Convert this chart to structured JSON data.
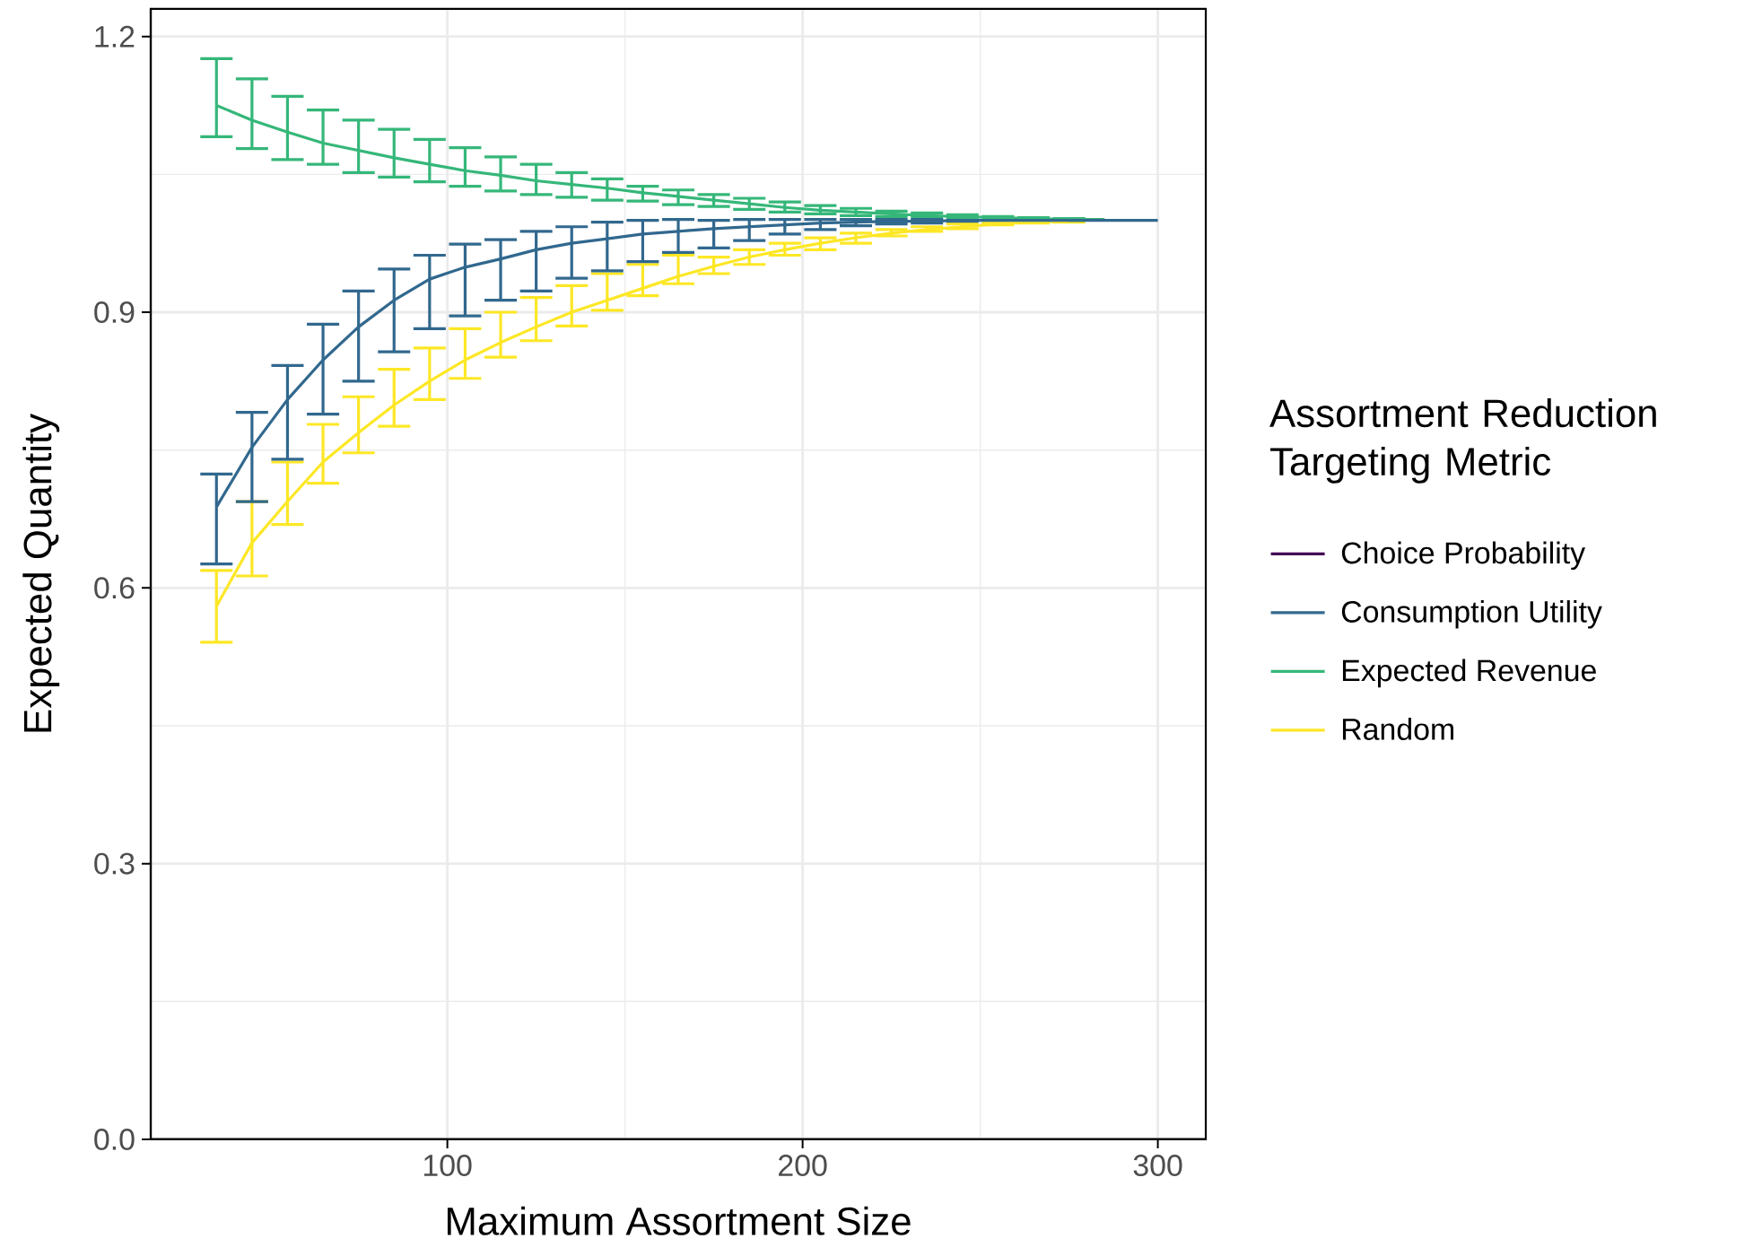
{
  "chart_data": {
    "type": "line",
    "xlabel": "Maximum Assortment Size",
    "ylabel": "Expected Quantity",
    "legend_title": "Assortment Reduction Targeting Metric",
    "x": [
      35,
      45,
      55,
      65,
      75,
      85,
      95,
      105,
      115,
      125,
      135,
      145,
      155,
      165,
      175,
      185,
      195,
      205,
      215,
      225,
      235,
      245,
      255,
      265,
      275,
      285,
      295,
      300
    ],
    "series": [
      {
        "name": "Choice Probability",
        "color": "#440154",
        "values": [
          null,
          null,
          null,
          null,
          null,
          null,
          null,
          null,
          null,
          null,
          null,
          null,
          null,
          null,
          null,
          null,
          null,
          null,
          null,
          null,
          null,
          null,
          null,
          null,
          null,
          null,
          null,
          null
        ]
      },
      {
        "name": "Consumption Utility",
        "color": "#31688e",
        "values": [
          0.688,
          0.753,
          0.805,
          0.848,
          0.884,
          0.913,
          0.936,
          0.949,
          0.958,
          0.968,
          0.975,
          0.98,
          0.985,
          0.988,
          0.991,
          0.993,
          0.995,
          0.997,
          0.998,
          0.999,
          0.999,
          1.0,
          1.0,
          1.0,
          1.0,
          1.0,
          1.0,
          1.0
        ],
        "errors": [
          [
            0.626,
            0.724
          ],
          [
            0.694,
            0.791
          ],
          [
            0.74,
            0.842
          ],
          [
            0.789,
            0.887
          ],
          [
            0.825,
            0.923
          ],
          [
            0.857,
            0.947
          ],
          [
            0.882,
            0.962
          ],
          [
            0.896,
            0.974
          ],
          [
            0.913,
            0.979
          ],
          [
            0.923,
            0.988
          ],
          [
            0.937,
            0.993
          ],
          [
            0.945,
            0.998
          ],
          [
            0.955,
            1.0
          ],
          [
            0.965,
            1.001
          ],
          [
            0.97,
            1.0
          ],
          [
            0.978,
            1.001
          ],
          [
            0.985,
            1.001
          ],
          [
            0.99,
            1.001
          ],
          [
            0.994,
            1.001
          ],
          [
            0.996,
            1.001
          ],
          [
            0.997,
            1.001
          ],
          [
            0.999,
            1.0
          ],
          null,
          null,
          null,
          null,
          null,
          null
        ]
      },
      {
        "name": "Expected Revenue",
        "color": "#35b779",
        "values": [
          1.125,
          1.109,
          1.096,
          1.084,
          1.076,
          1.068,
          1.061,
          1.054,
          1.049,
          1.043,
          1.039,
          1.035,
          1.03,
          1.026,
          1.022,
          1.018,
          1.014,
          1.011,
          1.009,
          1.007,
          1.005,
          1.004,
          1.003,
          1.002,
          1.001,
          1.001,
          null,
          null
        ],
        "errors": [
          [
            1.091,
            1.176
          ],
          [
            1.078,
            1.154
          ],
          [
            1.066,
            1.135
          ],
          [
            1.061,
            1.12
          ],
          [
            1.052,
            1.109
          ],
          [
            1.047,
            1.099
          ],
          [
            1.042,
            1.088
          ],
          [
            1.037,
            1.079
          ],
          [
            1.032,
            1.069
          ],
          [
            1.028,
            1.061
          ],
          [
            1.025,
            1.052
          ],
          [
            1.022,
            1.045
          ],
          [
            1.021,
            1.037
          ],
          [
            1.017,
            1.033
          ],
          [
            1.015,
            1.028
          ],
          [
            1.012,
            1.024
          ],
          [
            1.009,
            1.02
          ],
          [
            1.007,
            1.016
          ],
          [
            1.005,
            1.013
          ],
          [
            1.004,
            1.01
          ],
          [
            1.003,
            1.008
          ],
          [
            1.002,
            1.006
          ],
          [
            1.001,
            1.004
          ],
          [
            1.001,
            1.003
          ],
          [
            1.0,
            1.002
          ],
          null,
          null,
          null
        ]
      },
      {
        "name": "Random",
        "color": "#fde725",
        "values": [
          0.58,
          0.649,
          0.694,
          0.737,
          0.769,
          0.799,
          0.825,
          0.848,
          0.867,
          0.884,
          0.9,
          0.913,
          0.926,
          0.939,
          0.95,
          0.96,
          0.968,
          0.975,
          0.981,
          0.986,
          0.99,
          0.993,
          0.996,
          0.998,
          0.999,
          null,
          null,
          null
        ],
        "errors": [
          [
            0.541,
            0.619
          ],
          [
            0.613,
            0.694
          ],
          [
            0.669,
            0.737
          ],
          [
            0.714,
            0.778
          ],
          [
            0.747,
            0.808
          ],
          [
            0.776,
            0.838
          ],
          [
            0.805,
            0.861
          ],
          [
            0.828,
            0.882
          ],
          [
            0.851,
            0.9
          ],
          [
            0.869,
            0.916
          ],
          [
            0.885,
            0.929
          ],
          [
            0.902,
            0.942
          ],
          [
            0.918,
            0.952
          ],
          [
            0.931,
            0.962
          ],
          [
            0.942,
            0.96
          ],
          [
            0.952,
            0.968
          ],
          [
            0.962,
            0.975
          ],
          [
            0.968,
            0.981
          ],
          [
            0.975,
            0.986
          ],
          [
            0.983,
            0.99
          ],
          [
            0.988,
            0.993
          ],
          [
            0.991,
            0.996
          ],
          [
            0.995,
            0.998
          ],
          [
            0.997,
            0.999
          ],
          [
            0.998,
            1.0
          ],
          null,
          null,
          null
        ]
      }
    ],
    "xlim": [
      16.5,
      313.5
    ],
    "ylim": [
      0,
      1.23
    ],
    "xticks": [
      100,
      200,
      300
    ],
    "yticks": [
      {
        "value": 0,
        "label": "0.0"
      },
      0.3,
      0.6,
      0.9,
      1.2
    ],
    "grid": true,
    "legend": "right"
  }
}
